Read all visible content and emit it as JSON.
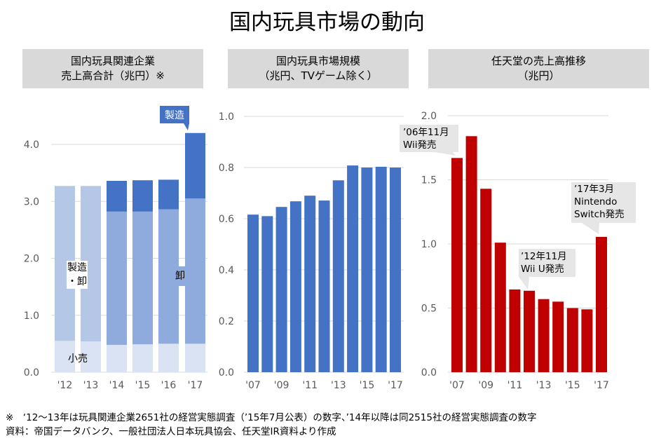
{
  "title": "国内玩具市場の動向",
  "chart_data": [
    {
      "type": "bar",
      "stacked": true,
      "title": "国内玩具関連企業\n売上高合計（兆円）※",
      "categories": [
        "'12",
        "'13",
        "'14",
        "'15",
        "'16",
        "'17"
      ],
      "ylim": [
        0,
        4.5
      ],
      "yticks": [
        "0.0",
        "1.0",
        "2.0",
        "3.0",
        "4.0"
      ],
      "series": [
        {
          "name": "小売",
          "values": [
            0.55,
            0.54,
            0.48,
            0.49,
            0.5,
            0.5
          ],
          "color": "#dae3f3"
        },
        {
          "name": "製造・卸",
          "values": [
            2.72,
            2.73,
            null,
            null,
            null,
            null
          ],
          "color": "#b4c7e7"
        },
        {
          "name": "卸",
          "values": [
            null,
            null,
            2.34,
            2.33,
            2.36,
            2.55
          ],
          "color": "#8faadc"
        },
        {
          "name": "製造",
          "values": [
            null,
            null,
            0.54,
            0.55,
            0.52,
            1.15
          ],
          "color": "#4472c4"
        }
      ],
      "annotations": {
        "retail": "小売",
        "mfg_whole": "製造・卸",
        "whole": "卸",
        "mfg": "製造"
      }
    },
    {
      "type": "bar",
      "title": "国内玩具市場規模\n（兆円、TVゲーム除く）",
      "categories": [
        "'07",
        "'08",
        "'09",
        "'10",
        "'11",
        "'12",
        "'13",
        "'14",
        "'15",
        "'16",
        "'17"
      ],
      "xtick_labels": [
        "'07",
        "",
        "'09",
        "",
        "'11",
        "",
        "'13",
        "",
        "'15",
        "",
        "'17"
      ],
      "values": [
        0.616,
        0.61,
        0.646,
        0.668,
        0.69,
        0.671,
        0.75,
        0.808,
        0.8,
        0.803,
        0.8
      ],
      "ylim": [
        0,
        1.0
      ],
      "yticks": [
        "0.0",
        "0.2",
        "0.4",
        "0.6",
        "0.8",
        "1.0"
      ],
      "color": "#4472c4"
    },
    {
      "type": "bar",
      "title": "任天堂の売上高推移\n（兆円）",
      "categories": [
        "'07",
        "'08",
        "'09",
        "'10",
        "'11",
        "'12",
        "'13",
        "'14",
        "'15",
        "'16",
        "'17"
      ],
      "xtick_labels": [
        "'07",
        "",
        "'09",
        "",
        "'11",
        "",
        "'13",
        "",
        "'15",
        "",
        "'17"
      ],
      "values": [
        1.67,
        1.84,
        1.43,
        1.01,
        0.645,
        0.635,
        0.57,
        0.55,
        0.5,
        0.49,
        1.055
      ],
      "ylim": [
        0,
        2.0
      ],
      "yticks": [
        "0.0",
        "0.5",
        "1.0",
        "1.5",
        "2.0"
      ],
      "color": "#c00000",
      "annotations": [
        "’06年11月\nWii発売",
        "’12年11月\nWii U発売",
        "’17年3月\nNintendo\nSwitch発売"
      ]
    }
  ],
  "footnote": "※　‘12～13年は玩具関連企業2651社の経営実態調査（’15年7月公表）の数字、’14年以降は同2515社の経営実態調査の数字",
  "source": "資料：帝国データバンク、一般社団法人日本玩具協会、任天堂IR資料より作成"
}
